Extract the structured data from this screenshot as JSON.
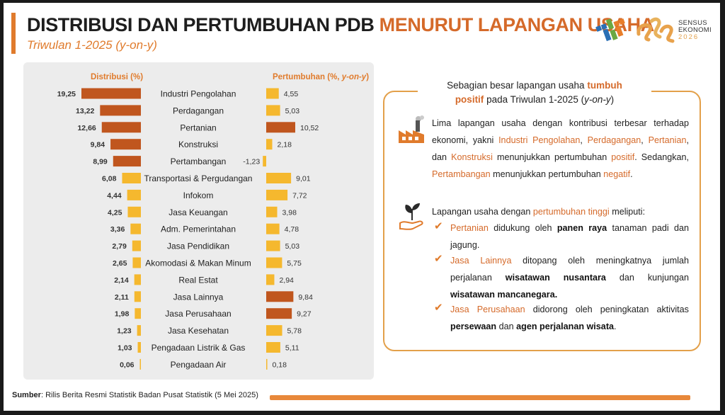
{
  "header": {
    "title_main": "DISTRIBUSI DAN PERTUMBUHAN PDB",
    "title_highlight": "MENURUT LAPANGAN USAHA",
    "subtitle": "Triwulan 1-2025 (y-on-y)"
  },
  "logo": {
    "line1": "SENSUS",
    "line2": "EKONOMI",
    "line3": "2026"
  },
  "colors": {
    "orange": "#e07b2c",
    "dark_orange": "#c0561e",
    "yellow": "#f5b82e",
    "panel": "#ececec"
  },
  "chart_data": {
    "type": "bar",
    "categories": [
      "Industri Pengolahan",
      "Perdagangan",
      "Pertanian",
      "Konstruksi",
      "Pertambangan",
      "Transportasi & Pergudangan",
      "Infokom",
      "Jasa Keuangan",
      "Adm. Pemerintahan",
      "Jasa Pendidikan",
      "Akomodasi & Makan Minum",
      "Real Estat",
      "Jasa Lainnya",
      "Jasa Perusahaan",
      "Jasa Kesehatan",
      "Pengadaan Listrik & Gas",
      "Pengadaan Air"
    ],
    "series": [
      {
        "name": "Distribusi (%)",
        "values": [
          19.25,
          13.22,
          12.66,
          9.84,
          8.99,
          6.08,
          4.44,
          4.25,
          3.36,
          2.79,
          2.65,
          2.14,
          2.11,
          1.98,
          1.23,
          1.03,
          0.06
        ],
        "labels": [
          "19,25",
          "13,22",
          "12,66",
          "9,84",
          "8,99",
          "6,08",
          "4,44",
          "4,25",
          "3,36",
          "2,79",
          "2,65",
          "2,14",
          "2,11",
          "1,98",
          "1,23",
          "1,03",
          "0,06"
        ]
      },
      {
        "name": "Pertumbuhan (%, y-on-y)",
        "values": [
          4.55,
          5.03,
          10.52,
          2.18,
          -1.23,
          9.01,
          7.72,
          3.98,
          4.78,
          5.03,
          5.75,
          2.94,
          9.84,
          9.27,
          5.78,
          5.11,
          0.18
        ],
        "labels": [
          "4,55",
          "5,03",
          "10,52",
          "2,18",
          "-1,23",
          "9,01",
          "7,72",
          "3,98",
          "4,78",
          "5,03",
          "5,75",
          "2,94",
          "9,84",
          "9,27",
          "5,78",
          "5,11",
          "0,18"
        ]
      }
    ],
    "dist_highlight_count": 5,
    "growth_highlight": [
      2,
      12,
      13
    ],
    "header_left": "Distribusi (%)",
    "header_right_a": "Pertumbuhan (%, ",
    "header_right_b": "y-on-y",
    "header_right_c": ")"
  },
  "info": {
    "title_a": "Sebagian besar lapangan usaha ",
    "title_b": "tumbuh",
    "title_c": "positif",
    "title_d": " pada Triwulan 1-2025 (",
    "title_e": "y-on-y",
    "title_f": ")",
    "p1": [
      {
        "t": "Lima lapangan usaha dengan kontribusi terbesar terhadap ekonomi, yakni ",
        "c": ""
      },
      {
        "t": "Industri Pengolahan",
        "c": "or"
      },
      {
        "t": ", ",
        "c": ""
      },
      {
        "t": "Perdagangan",
        "c": "or"
      },
      {
        "t": ", ",
        "c": ""
      },
      {
        "t": "Pertanian",
        "c": "or"
      },
      {
        "t": ", dan ",
        "c": ""
      },
      {
        "t": "Konstruksi",
        "c": "or"
      },
      {
        "t": " menunjukkan pertumbuhan ",
        "c": ""
      },
      {
        "t": "positif",
        "c": "or"
      },
      {
        "t": ". Sedangkan, ",
        "c": ""
      },
      {
        "t": "Pertambangan",
        "c": "or"
      },
      {
        "t": " menunjukkan pertumbuhan ",
        "c": ""
      },
      {
        "t": "negatif",
        "c": "or"
      },
      {
        "t": ".",
        "c": ""
      }
    ],
    "p2": [
      {
        "t": "Lapangan usaha dengan ",
        "c": ""
      },
      {
        "t": "pertumbuhan tinggi",
        "c": "or"
      },
      {
        "t": " meliputi:",
        "c": ""
      }
    ],
    "b1": [
      {
        "t": "Pertanian",
        "c": "or"
      },
      {
        "t": " didukung oleh ",
        "c": ""
      },
      {
        "t": "panen raya",
        "c": "bl"
      },
      {
        "t": " tanaman padi dan jagung.",
        "c": ""
      }
    ],
    "b2": [
      {
        "t": "Jasa Lainnya",
        "c": "or"
      },
      {
        "t": " ditopang oleh meningkatnya jumlah perjalanan ",
        "c": ""
      },
      {
        "t": "wisatawan nusantara",
        "c": "bl"
      },
      {
        "t": " dan kunjungan ",
        "c": ""
      },
      {
        "t": "wisatawan mancanegara.",
        "c": "bl"
      }
    ],
    "b3": [
      {
        "t": "Jasa Perusahaan",
        "c": "or"
      },
      {
        "t": " didorong oleh peningkatan aktivitas ",
        "c": ""
      },
      {
        "t": "persewaan",
        "c": "bl"
      },
      {
        "t": " dan ",
        "c": ""
      },
      {
        "t": "agen perjalanan wisata",
        "c": "bl"
      },
      {
        "t": ".",
        "c": ""
      }
    ]
  },
  "source": {
    "label": "Sumber",
    "text": ": Rilis Berita Resmi Statistik Badan Pusat Statistik (5 Mei 2025)"
  }
}
